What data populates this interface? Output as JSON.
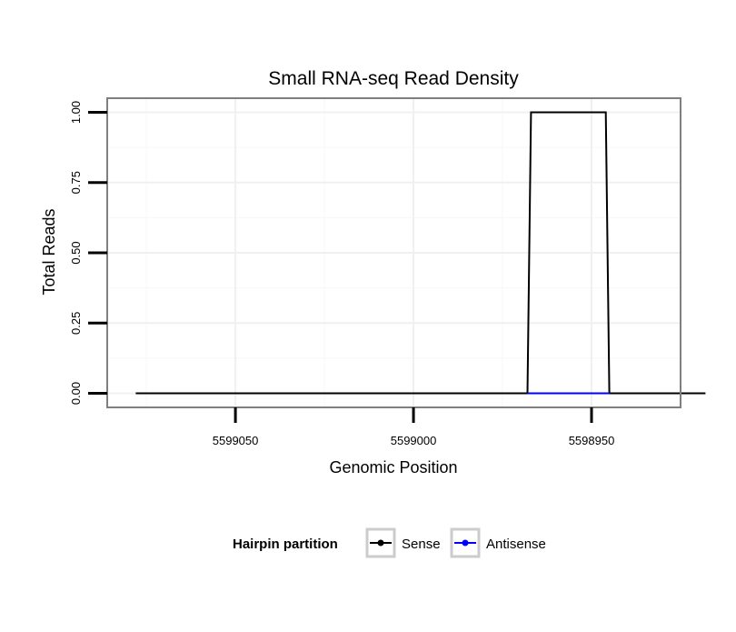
{
  "chart_data": {
    "type": "line",
    "title": "Small RNA-seq Read Density",
    "xlabel": "Genomic Position",
    "ylabel": "Total Reads",
    "x_reversed": true,
    "xlim": [
      5599086,
      5598925
    ],
    "ylim": [
      -0.05,
      1.05
    ],
    "x_ticks": [
      {
        "value": 5599050,
        "label": "5599050"
      },
      {
        "value": 5599000,
        "label": "5599000"
      },
      {
        "value": 5598950,
        "label": "5598950"
      }
    ],
    "y_ticks": [
      {
        "value": 0,
        "label": "0.00"
      },
      {
        "value": 0.25,
        "label": "0.25"
      },
      {
        "value": 0.5,
        "label": "0.50"
      },
      {
        "value": 0.75,
        "label": "0.75"
      },
      {
        "value": 1,
        "label": "1.00"
      }
    ],
    "grid": true,
    "legend": {
      "title": "Hairpin partition",
      "position": "bottom"
    },
    "series": [
      {
        "name": "Sense",
        "color": "#000000",
        "x": [
          5599078,
          5598968,
          5598967,
          5598946,
          5598945,
          5598918
        ],
        "y": [
          0,
          0,
          1,
          1,
          0,
          0
        ]
      },
      {
        "name": "Antisense",
        "color": "#0000ff",
        "x": [
          5598968,
          5598945
        ],
        "y": [
          0,
          0
        ]
      }
    ]
  }
}
